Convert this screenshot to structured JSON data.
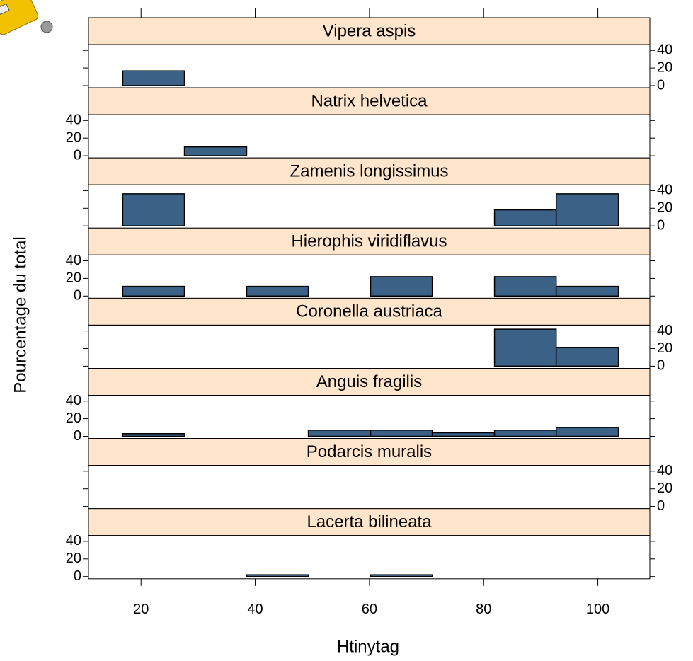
{
  "chart_data": {
    "type": "histogram",
    "xlabel": "Htinytag",
    "ylabel": "Pourcentage du total",
    "bins": [
      16.8,
      27.6,
      38.5,
      49.3,
      60.2,
      71.0,
      81.9,
      92.7,
      103.6
    ],
    "xlim": [
      10.8,
      109.1
    ],
    "xticks": [
      20,
      40,
      60,
      80,
      100
    ],
    "ylim": [
      -2.5,
      46.6
    ],
    "yticks": [
      0,
      20,
      40
    ],
    "color": "#3c6186",
    "strip_color": "#ffe5cc",
    "panels": [
      {
        "title": "Vipera aspis",
        "values": [
          16.7,
          0,
          0,
          0,
          0,
          0,
          0,
          0
        ]
      },
      {
        "title": "Natrix helvetica",
        "values": [
          0,
          10,
          0,
          0,
          0,
          0,
          0,
          0
        ]
      },
      {
        "title": "Zamenis longissimus",
        "values": [
          36.4,
          0,
          0,
          0,
          0,
          0,
          18.2,
          36.4
        ]
      },
      {
        "title": "Hierophis viridiflavus",
        "values": [
          11,
          0,
          11,
          0,
          22,
          0,
          22,
          11
        ]
      },
      {
        "title": "Coronella austriaca",
        "values": [
          0,
          0,
          0,
          0,
          0,
          0,
          42,
          21
        ]
      },
      {
        "title": "Anguis fragilis",
        "values": [
          3,
          0,
          0,
          7,
          7,
          4,
          7,
          10
        ]
      },
      {
        "title": "Podarcis muralis",
        "values": [
          0,
          0,
          0,
          0,
          0,
          0,
          0,
          0
        ]
      },
      {
        "title": "Lacerta bilineata",
        "values": [
          0,
          0,
          2,
          0,
          2,
          0,
          0,
          0
        ]
      }
    ]
  }
}
